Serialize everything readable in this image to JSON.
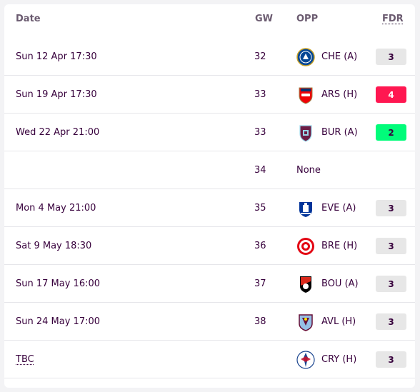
{
  "header": {
    "date": "Date",
    "gw": "GW",
    "opp": "OPP",
    "fdr": "FDR"
  },
  "fixtures": [
    {
      "date": "Sun 12 Apr 17:30",
      "gw": "32",
      "crest": "chelsea-crest-icon",
      "opponent": "CHE (A)",
      "fdr": "3",
      "fdr_color": "#e7e7e7",
      "fdr_text_color": "#37003c"
    },
    {
      "date": "Sun 19 Apr 17:30",
      "gw": "33",
      "crest": "arsenal-crest-icon",
      "opponent": "ARS (H)",
      "fdr": "4",
      "fdr_color": "#ff1751",
      "fdr_text_color": "#ffffff"
    },
    {
      "date": "Wed 22 Apr 21:00",
      "gw": "33",
      "crest": "burnley-crest-icon",
      "opponent": "BUR (A)",
      "fdr": "2",
      "fdr_color": "#01fc7a",
      "fdr_text_color": "#37003c"
    },
    {
      "date": "",
      "gw": "34",
      "crest": null,
      "opponent": "None",
      "fdr": null
    },
    {
      "date": "Mon 4 May 21:00",
      "gw": "35",
      "crest": "everton-crest-icon",
      "opponent": "EVE (A)",
      "fdr": "3",
      "fdr_color": "#e7e7e7",
      "fdr_text_color": "#37003c"
    },
    {
      "date": "Sat 9 May 18:30",
      "gw": "36",
      "crest": "brentford-crest-icon",
      "opponent": "BRE (H)",
      "fdr": "3",
      "fdr_color": "#e7e7e7",
      "fdr_text_color": "#37003c"
    },
    {
      "date": "Sun 17 May 16:00",
      "gw": "37",
      "crest": "bournemouth-crest-icon",
      "opponent": "BOU (A)",
      "fdr": "3",
      "fdr_color": "#e7e7e7",
      "fdr_text_color": "#37003c"
    },
    {
      "date": "Sun 24 May 17:00",
      "gw": "38",
      "crest": "aston-villa-crest-icon",
      "opponent": "AVL (H)",
      "fdr": "3",
      "fdr_color": "#e7e7e7",
      "fdr_text_color": "#37003c"
    },
    {
      "date": "TBC",
      "gw": "",
      "crest": "crystal-palace-crest-icon",
      "opponent": "CRY (H)",
      "fdr": "3",
      "fdr_color": "#e7e7e7",
      "fdr_text_color": "#37003c"
    }
  ]
}
